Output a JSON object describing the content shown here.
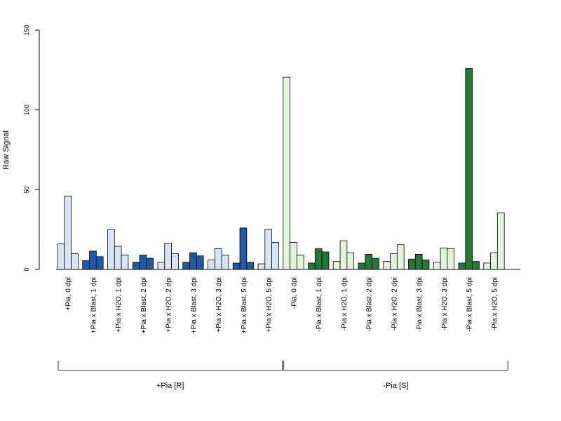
{
  "chart_data": {
    "type": "bar",
    "ylabel": "Raw Signal",
    "ylim": [
      0,
      150
    ],
    "yticks": [
      0,
      50,
      100,
      150
    ],
    "categories": [
      "+Pia, 0 dpi",
      "+Pia x Blast, 1 dpi",
      "+Pia x H2O, 1 dpi",
      "+Pia x Blast, 2 dpi",
      "+Pia x H2O, 2 dpi",
      "+Pia x Blast, 3 dpi",
      "+Pia x H2O, 3 dpi",
      "+Pia x Blast, 5 dpi",
      "+Pia x H2O, 5 dpi",
      "-Pia, 0 dpi",
      "-Pia x Blast, 1 dpi",
      "-Pia x H2O, 1 dpi",
      "-Pia x Blast, 2 dpi",
      "-Pia x H2O, 2 dpi",
      "-Pia x Blast, 3 dpi",
      "-Pia x H2O, 3 dpi",
      "-Pia x Blast, 5 dpi",
      "-Pia x H2O, 5 dpi"
    ],
    "replicates": [
      [
        16,
        46,
        10
      ],
      [
        5.5,
        11.5,
        8
      ],
      [
        25,
        14.5,
        9
      ],
      [
        4.5,
        9,
        7
      ],
      [
        4.5,
        16.5,
        10
      ],
      [
        4.5,
        10.5,
        8.5
      ],
      [
        6,
        13,
        9
      ],
      [
        4,
        26,
        4.5
      ],
      [
        3.5,
        25,
        17
      ],
      [
        120.5,
        17,
        9
      ],
      [
        4,
        13,
        11
      ],
      [
        5,
        18,
        10.5
      ],
      [
        4,
        9.5,
        7
      ],
      [
        5,
        10,
        15.5
      ],
      [
        6.5,
        9.5,
        6
      ],
      [
        4.5,
        13.5,
        13
      ],
      [
        4,
        126,
        5
      ],
      [
        4,
        10.5,
        35.5
      ]
    ],
    "groups": [
      {
        "label": "+Pia [R]",
        "from": 0,
        "to": 8
      },
      {
        "label": "-Pia [S]",
        "from": 9,
        "to": 17
      }
    ],
    "colors": {
      "pia_plus_light": "#d6e4f4",
      "pia_plus_dark": "#1f5aa8",
      "pia_minus_light": "#e2f5dc",
      "pia_minus_dark": "#237a37"
    }
  }
}
